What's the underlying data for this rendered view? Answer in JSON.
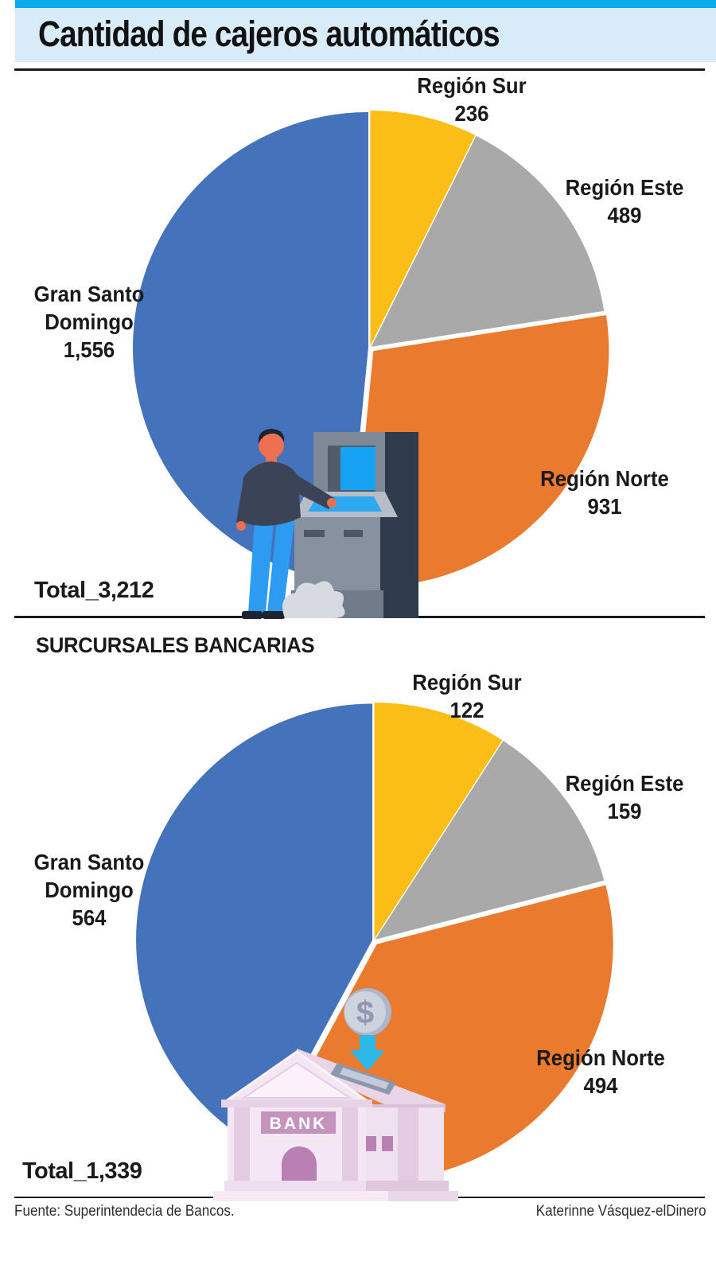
{
  "header": {
    "title": "Cantidad de cajeros automáticos"
  },
  "section2": {
    "heading": "SURCURSALES BANCARIAS"
  },
  "chart_data": [
    {
      "type": "pie",
      "title": "Cantidad de cajeros automáticos",
      "categories": [
        "Región Sur",
        "Región Este",
        "Región Norte",
        "Gran Santo Domingo"
      ],
      "values": [
        236,
        489,
        931,
        1556
      ],
      "value_labels": [
        "236",
        "489",
        "931",
        "1,556"
      ],
      "label_lines": [
        [
          "Región Sur",
          "236"
        ],
        [
          "Región Este",
          "489"
        ],
        [
          "Región Norte",
          "931"
        ],
        [
          "Gran Santo",
          "Domingo",
          "1,556"
        ]
      ],
      "colors": [
        "#FBBE17",
        "#A9A9A9",
        "#EA7A2D",
        "#4573BB"
      ],
      "total": 3212,
      "total_label": "Total_3,212",
      "start_angle_deg": 0,
      "direction": "clockwise",
      "legend_position": "labels-around-pie"
    },
    {
      "type": "pie",
      "title": "SURCURSALES BANCARIAS",
      "categories": [
        "Región Sur",
        "Región Este",
        "Región Norte",
        "Gran Santo Domingo"
      ],
      "values": [
        122,
        159,
        494,
        564
      ],
      "value_labels": [
        "122",
        "159",
        "494",
        "564"
      ],
      "label_lines": [
        [
          "Región Sur",
          "122"
        ],
        [
          "Región Este",
          "159"
        ],
        [
          "Región Norte",
          "494"
        ],
        [
          "Gran Santo",
          "Domingo",
          "564"
        ]
      ],
      "colors": [
        "#FBBE17",
        "#A9A9A9",
        "#EA7A2D",
        "#4573BB"
      ],
      "total": 1339,
      "total_label": "Total_1,339",
      "start_angle_deg": 0,
      "direction": "clockwise",
      "legend_position": "labels-around-pie"
    }
  ],
  "illustrations": {
    "atm_person": "person-using-atm",
    "bank": "bank-building-with-coin",
    "bank_sign_text": "BANK",
    "coin_symbol": "$"
  },
  "footer": {
    "source": "Fuente: Superintendecia de Bancos.",
    "credit": "Katerinne Vásquez-elDinero"
  },
  "palette": {
    "header_bar": "#0AA9E9",
    "header_band": "#D7EBF9",
    "blue": "#4573BB",
    "orange": "#EA7A2D",
    "gray": "#A9A9A9",
    "yellow": "#FBBE17",
    "arrow_cyan": "#2CB9E9"
  }
}
